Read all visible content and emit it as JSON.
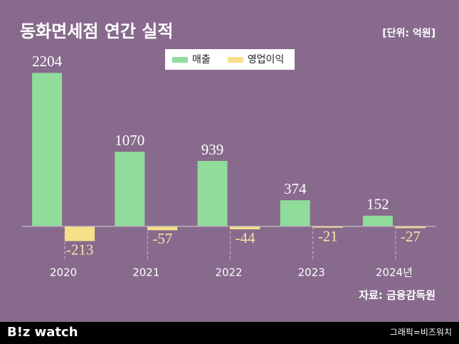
{
  "chart_data": {
    "type": "bar",
    "title": "동화면세점 연간 실적",
    "unit": "[단위: 억원]",
    "source": "자료: 금융감독원",
    "categories": [
      "2020",
      "2021",
      "2022",
      "2023",
      "2024년"
    ],
    "series": [
      {
        "name": "매출",
        "color": "#8fdc9b",
        "values": [
          2204,
          1070,
          939,
          374,
          152
        ]
      },
      {
        "name": "영업이익",
        "color": "#f6e189",
        "values": [
          -213,
          -57,
          -44,
          -21,
          -27
        ]
      }
    ],
    "ylim": [
      -300,
      2300
    ],
    "legend": "top"
  },
  "footer": {
    "logo": "B!z watch",
    "credit": "그래픽=비즈워치"
  }
}
